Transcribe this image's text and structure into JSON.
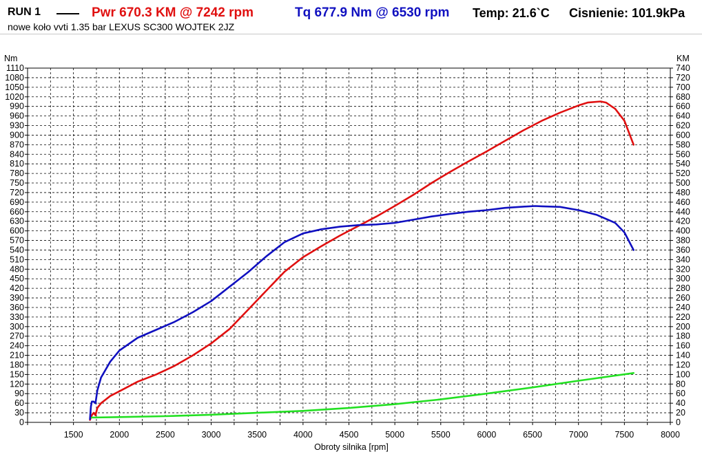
{
  "header": {
    "run_label": "RUN 1",
    "pwr_label": "Pwr  670.3 KM @ 7242 rpm",
    "tq_label": "Tq 677.9 Nm @ 6530 rpm",
    "temp_label": "Temp: 21.6`C",
    "pressure_label": "Cisnienie: 101.9kPa",
    "subtitle": "nowe koło vvti 1.35 bar LEXUS SC300 WOJTEK 2JZ"
  },
  "colors": {
    "power": "#e01010",
    "torque": "#1010c0",
    "third_series": "#22e022",
    "grid": "#000000"
  },
  "chart_data": {
    "type": "line",
    "xlabel": "Obroty silnika [rpm]",
    "ylabel_left": "Nm",
    "ylabel_right": "KM",
    "xlim": [
      1000,
      8000
    ],
    "ylim_left": [
      0,
      1110
    ],
    "ylim_right": [
      0,
      740
    ],
    "x_ticks": [
      1500,
      2000,
      2500,
      3000,
      3500,
      4000,
      4500,
      5000,
      5500,
      6000,
      6500,
      7000,
      7500,
      8000
    ],
    "y_ticks_left": [
      0,
      30,
      60,
      90,
      120,
      150,
      180,
      210,
      240,
      270,
      300,
      330,
      360,
      390,
      420,
      450,
      480,
      510,
      540,
      570,
      600,
      630,
      660,
      690,
      720,
      750,
      780,
      810,
      840,
      870,
      900,
      930,
      960,
      990,
      1020,
      1050,
      1080,
      1110
    ],
    "y_ticks_right": [
      0,
      20,
      40,
      60,
      80,
      100,
      120,
      140,
      160,
      180,
      200,
      220,
      240,
      260,
      280,
      300,
      320,
      340,
      360,
      380,
      400,
      420,
      440,
      460,
      480,
      500,
      520,
      540,
      560,
      580,
      600,
      620,
      640,
      660,
      680,
      700,
      720,
      740
    ],
    "grid": true,
    "series": [
      {
        "name": "Pwr",
        "axis": "right",
        "color": "#e01010",
        "points": [
          [
            1680,
            5
          ],
          [
            1700,
            15
          ],
          [
            1720,
            20
          ],
          [
            1740,
            15
          ],
          [
            1760,
            30
          ],
          [
            1800,
            40
          ],
          [
            1900,
            55
          ],
          [
            2000,
            65
          ],
          [
            2200,
            85
          ],
          [
            2400,
            100
          ],
          [
            2600,
            118
          ],
          [
            2800,
            140
          ],
          [
            3000,
            165
          ],
          [
            3200,
            195
          ],
          [
            3400,
            235
          ],
          [
            3600,
            275
          ],
          [
            3800,
            315
          ],
          [
            4000,
            345
          ],
          [
            4200,
            368
          ],
          [
            4400,
            390
          ],
          [
            4600,
            410
          ],
          [
            4800,
            430
          ],
          [
            5000,
            452
          ],
          [
            5200,
            475
          ],
          [
            5400,
            500
          ],
          [
            5600,
            523
          ],
          [
            5800,
            545
          ],
          [
            6000,
            566
          ],
          [
            6200,
            588
          ],
          [
            6400,
            610
          ],
          [
            6600,
            630
          ],
          [
            6800,
            647
          ],
          [
            7000,
            662
          ],
          [
            7100,
            668
          ],
          [
            7242,
            670.3
          ],
          [
            7300,
            668
          ],
          [
            7400,
            655
          ],
          [
            7500,
            630
          ],
          [
            7600,
            580
          ]
        ]
      },
      {
        "name": "Tq",
        "axis": "left",
        "color": "#1010c0",
        "points": [
          [
            1680,
            10
          ],
          [
            1690,
            50
          ],
          [
            1700,
            65
          ],
          [
            1720,
            65
          ],
          [
            1740,
            60
          ],
          [
            1760,
            100
          ],
          [
            1800,
            140
          ],
          [
            1900,
            190
          ],
          [
            2000,
            225
          ],
          [
            2200,
            265
          ],
          [
            2400,
            290
          ],
          [
            2600,
            315
          ],
          [
            2800,
            345
          ],
          [
            3000,
            380
          ],
          [
            3200,
            425
          ],
          [
            3400,
            470
          ],
          [
            3600,
            520
          ],
          [
            3800,
            565
          ],
          [
            4000,
            592
          ],
          [
            4200,
            605
          ],
          [
            4400,
            613
          ],
          [
            4600,
            618
          ],
          [
            4800,
            620
          ],
          [
            5000,
            625
          ],
          [
            5200,
            635
          ],
          [
            5400,
            645
          ],
          [
            5600,
            653
          ],
          [
            5800,
            660
          ],
          [
            6000,
            665
          ],
          [
            6200,
            672
          ],
          [
            6400,
            676
          ],
          [
            6530,
            677.9
          ],
          [
            6600,
            677
          ],
          [
            6800,
            675
          ],
          [
            7000,
            665
          ],
          [
            7200,
            650
          ],
          [
            7400,
            625
          ],
          [
            7500,
            595
          ],
          [
            7600,
            540
          ]
        ]
      },
      {
        "name": "",
        "axis": "right",
        "color": "#22e022",
        "points": [
          [
            1700,
            10
          ],
          [
            2000,
            11
          ],
          [
            2500,
            13
          ],
          [
            3000,
            16
          ],
          [
            3500,
            20
          ],
          [
            4000,
            24
          ],
          [
            4500,
            30
          ],
          [
            5000,
            38
          ],
          [
            5500,
            48
          ],
          [
            6000,
            60
          ],
          [
            6500,
            73
          ],
          [
            7000,
            87
          ],
          [
            7600,
            103
          ]
        ]
      }
    ]
  }
}
